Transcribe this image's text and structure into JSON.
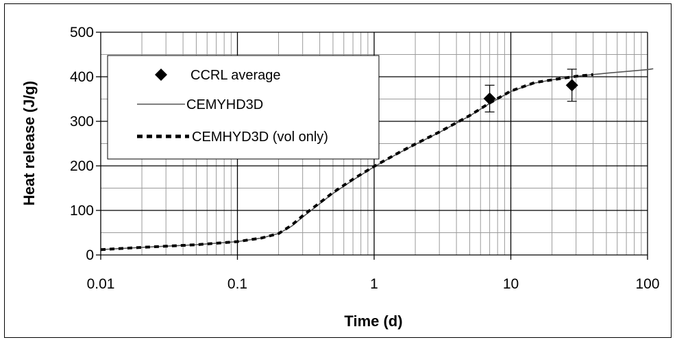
{
  "chart_data": {
    "type": "scatter",
    "xlabel": "Time (d)",
    "ylabel": "Heat release (J/g)",
    "xscale": "log",
    "xlim": [
      0.01,
      100
    ],
    "ylim": [
      0,
      500
    ],
    "x_ticks": [
      "0.01",
      "0.1",
      "1",
      "10",
      "100"
    ],
    "y_ticks": [
      "0",
      "100",
      "200",
      "300",
      "400",
      "500"
    ],
    "grid": true,
    "legend_position": "top-left",
    "series": [
      {
        "name": "CCRL average",
        "kind": "points",
        "marker": "diamond",
        "color": "#000000",
        "x": [
          7,
          28
        ],
        "y": [
          351,
          381
        ],
        "error": [
          30,
          36
        ]
      },
      {
        "name": "CEMYHD3D",
        "kind": "line",
        "color": "#555555",
        "x": [
          0.01,
          0.02,
          0.05,
          0.1,
          0.15,
          0.2,
          0.25,
          0.3,
          0.4,
          0.5,
          0.7,
          1,
          1.5,
          2,
          3,
          5,
          7,
          10,
          15,
          20,
          30,
          50,
          100,
          110
        ],
        "y": [
          12,
          17,
          23,
          30,
          38,
          48,
          65,
          85,
          115,
          138,
          168,
          198,
          228,
          248,
          275,
          312,
          340,
          367,
          386,
          393,
          401,
          408,
          416,
          418
        ]
      },
      {
        "name": "CEMHYD3D (vol only)",
        "kind": "dashed-line",
        "color": "#000000",
        "x": [
          0.01,
          0.02,
          0.05,
          0.1,
          0.15,
          0.2,
          0.25,
          0.3,
          0.4,
          0.5,
          0.7,
          1,
          1.5,
          2,
          3,
          5,
          7,
          10,
          15,
          20,
          30,
          40
        ],
        "y": [
          12,
          17,
          23,
          30,
          38,
          48,
          67,
          88,
          117,
          140,
          170,
          199,
          229,
          249,
          276,
          313,
          341,
          368,
          387,
          393,
          401,
          405
        ]
      }
    ]
  }
}
